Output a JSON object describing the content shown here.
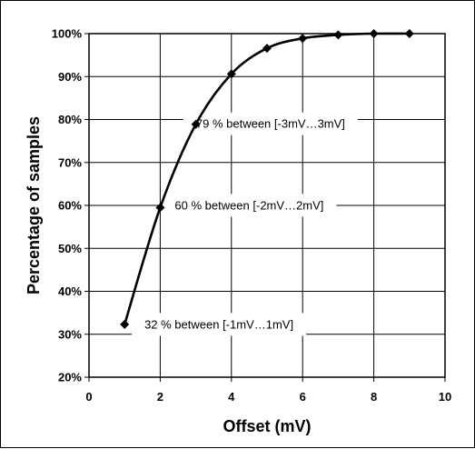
{
  "chart_data": {
    "type": "line",
    "title": "",
    "xlabel": "Offset (mV)",
    "ylabel": "Percentage of samples",
    "xlim": [
      0,
      10
    ],
    "ylim": [
      20,
      100
    ],
    "x_ticks": [
      0,
      2,
      4,
      6,
      8,
      10
    ],
    "y_ticks": [
      20,
      30,
      40,
      50,
      60,
      70,
      80,
      90,
      100
    ],
    "y_tick_suffix": "%",
    "grid": true,
    "legend": "none",
    "series": [
      {
        "x": [
          1,
          2,
          3,
          4,
          5,
          6,
          7,
          8,
          9
        ],
        "y": [
          32.3,
          59.5,
          78.9,
          90.6,
          96.6,
          98.9,
          99.7,
          100,
          100
        ],
        "marker": "diamond",
        "color": "#000000"
      }
    ],
    "annotations": [
      {
        "text": "79 % between [-3mV…3mV]",
        "x": 5.1,
        "y": 79
      },
      {
        "text": "60 % between [-2mV…2mV]",
        "x": 4.5,
        "y": 60
      },
      {
        "text": "32 % between [-1mV…1mV]",
        "x": 3.65,
        "y": 32.3
      }
    ]
  }
}
